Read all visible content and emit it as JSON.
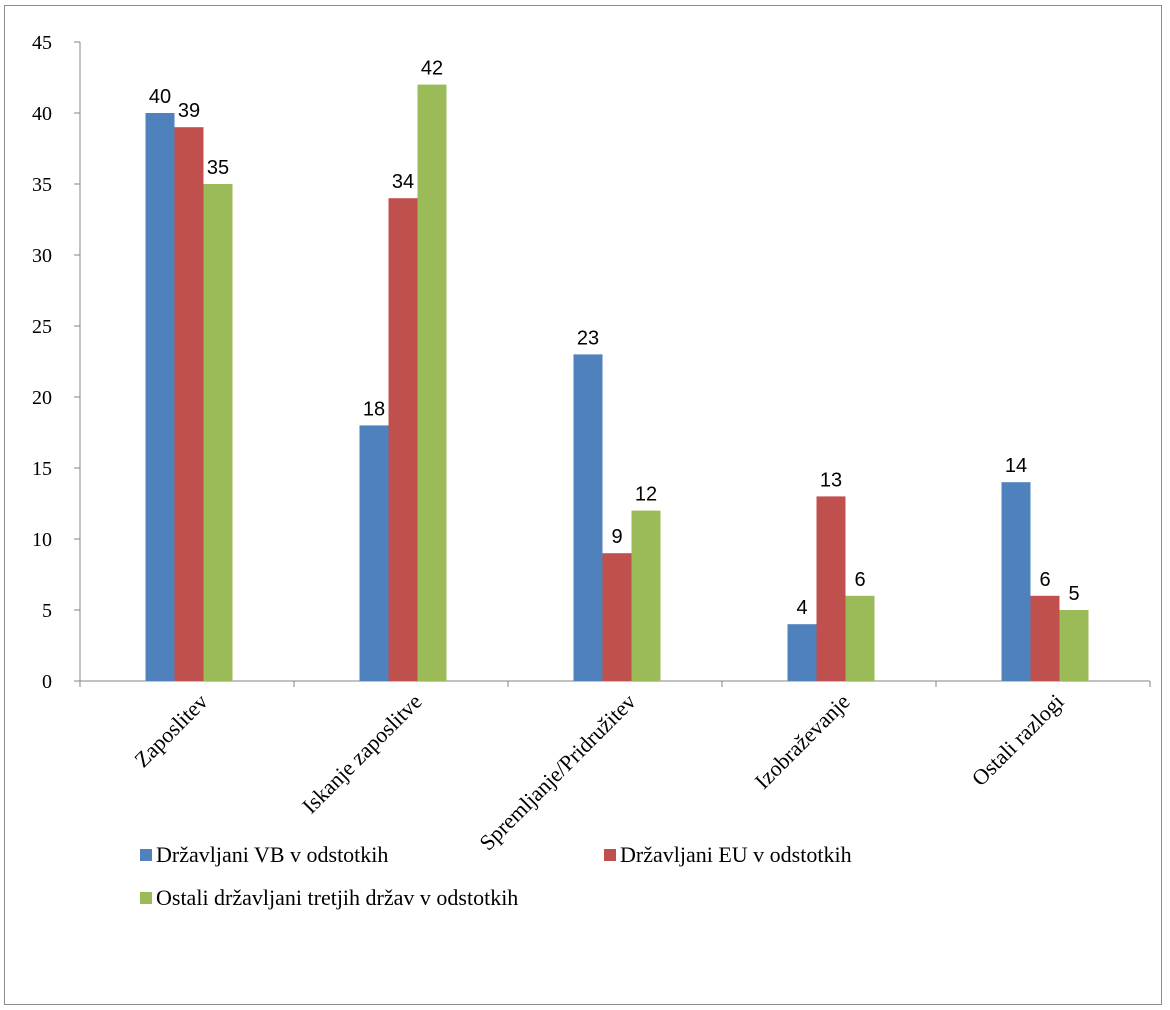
{
  "chart_data": {
    "type": "bar",
    "categories": [
      "Zaposlitev",
      "Iskanje zaposlitve",
      "Spremljanje/Pridružitev",
      "Izobraževanje",
      "Ostali razlogi"
    ],
    "series": [
      {
        "name": "Državljani VB v odstotkih",
        "values": [
          40,
          18,
          23,
          4,
          14
        ],
        "color": "#4F81BD"
      },
      {
        "name": "Državljani EU v odstotkih",
        "values": [
          39,
          34,
          9,
          13,
          6
        ],
        "color": "#C0504D"
      },
      {
        "name": "Ostali državljani tretjih držav v odstotkih",
        "values": [
          35,
          42,
          12,
          6,
          5
        ],
        "color": "#9BBB59"
      }
    ],
    "ylim": [
      0,
      45
    ],
    "yticks": [
      0,
      5,
      10,
      15,
      20,
      25,
      30,
      35,
      40,
      45
    ],
    "grid": false,
    "legend_position": "bottom",
    "data_labels": true
  }
}
